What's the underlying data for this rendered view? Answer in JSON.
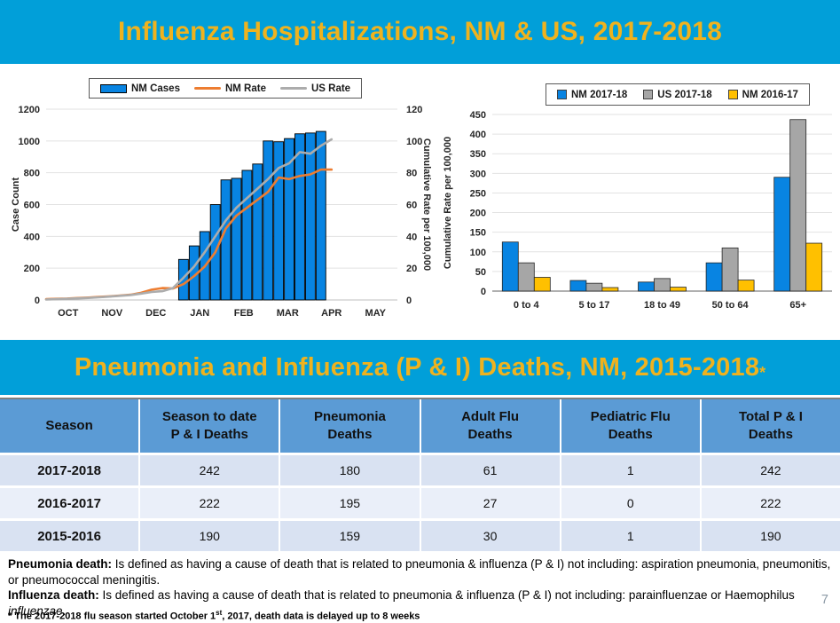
{
  "slide": {
    "title1": "Influenza Hospitalizations, NM & US, 2017-2018",
    "title2": "Pneumonia and Influenza (P & I) Deaths, NM, 2015-2018",
    "title2_asterisk": "*",
    "page_number": "7"
  },
  "colors": {
    "banner_blue": "#019FD9",
    "title_gold": "#EFB21E",
    "bar_blue": "#0884E2",
    "line_orange": "#ED7D31",
    "line_gray": "#ACACAC",
    "bar_gray": "#A6A6A6",
    "bar_gold": "#FFC000",
    "table_header_blue": "#5B9BD5",
    "row_dark": "#D9E2F2",
    "row_light": "#EAEFF9"
  },
  "chart_data": [
    {
      "id": "influenza-hospitalizations-weekly",
      "type": "bar+line",
      "xlabel": "",
      "ylabel_left": "Case Count",
      "ylabel_right": "Cumulative Rate per 100,000",
      "y_left": {
        "min": 0,
        "max": 1200,
        "step": 200
      },
      "y_right": {
        "min": 0,
        "max": 120,
        "step": 20
      },
      "x_months": [
        "OCT",
        "NOV",
        "DEC",
        "JAN",
        "FEB",
        "MAR",
        "APR",
        "MAY"
      ],
      "x_domain": [
        0,
        8
      ],
      "bars": {
        "name": "NM Cases",
        "color": "#0884E2",
        "x": [
          3.129,
          3.37,
          3.611,
          3.852,
          4.092,
          4.333,
          4.574,
          4.814,
          5.055,
          5.296,
          5.537,
          5.777,
          6.018,
          6.259
        ],
        "values": [
          255,
          340,
          430,
          600,
          755,
          765,
          815,
          855,
          1000,
          995,
          1015,
          1045,
          1050,
          1060
        ]
      },
      "lines": [
        {
          "name": "NM Rate",
          "color": "#ED7D31",
          "x": [
            0,
            0.241,
            0.481,
            0.722,
            0.963,
            1.204,
            1.444,
            1.685,
            1.926,
            2.166,
            2.407,
            2.648,
            2.889,
            3.129,
            3.37,
            3.611,
            3.852,
            4.092,
            4.333,
            4.574,
            4.814,
            5.055,
            5.296,
            5.537,
            5.777,
            6.018,
            6.259,
            6.5
          ],
          "values": [
            0.5,
            0.7,
            0.9,
            1.2,
            1.5,
            1.9,
            2.3,
            2.8,
            3.3,
            4.5,
            6.5,
            7.5,
            7.2,
            10,
            15,
            21,
            30,
            45,
            53,
            58,
            63,
            68,
            77,
            76,
            78,
            79,
            82,
            82
          ]
        },
        {
          "name": "US Rate",
          "color": "#ACACAC",
          "x": [
            0,
            0.241,
            0.481,
            0.722,
            0.963,
            1.204,
            1.444,
            1.685,
            1.926,
            2.166,
            2.407,
            2.648,
            2.889,
            3.129,
            3.37,
            3.611,
            3.852,
            4.092,
            4.333,
            4.574,
            4.814,
            5.055,
            5.296,
            5.537,
            5.777,
            6.018,
            6.259,
            6.5
          ],
          "values": [
            0.3,
            0.5,
            0.7,
            1.0,
            1.3,
            1.7,
            2.1,
            2.6,
            3.1,
            4,
            5,
            5.5,
            7.5,
            14,
            21,
            30,
            40,
            50,
            58,
            64,
            70,
            76,
            83,
            86,
            93,
            92,
            97,
            101
          ]
        }
      ]
    },
    {
      "id": "cumulative-rate-by-age",
      "type": "grouped-bar",
      "ylabel": "Cumulative Rate per 100,000",
      "y": {
        "min": 0,
        "max": 450,
        "step": 50
      },
      "categories": [
        "0 to 4",
        "5 to 17",
        "18 to 49",
        "50 to 64",
        "65+"
      ],
      "series": [
        {
          "name": "NM 2017-18",
          "color": "#0884E2",
          "values": [
            125,
            27,
            23,
            72,
            290
          ]
        },
        {
          "name": "US 2017-18",
          "color": "#A6A6A6",
          "values": [
            72,
            20,
            32,
            110,
            437
          ]
        },
        {
          "name": "NM 2016-17",
          "color": "#FFC000",
          "values": [
            35,
            9,
            10,
            28,
            122
          ]
        }
      ]
    }
  ],
  "table": {
    "headers": [
      "Season",
      "Season to date\nP & I Deaths",
      "Pneumonia\nDeaths",
      "Adult Flu\nDeaths",
      "Pediatric Flu\nDeaths",
      "Total P & I\nDeaths"
    ],
    "rows": [
      {
        "season": "2017-2018",
        "cells": [
          "242",
          "180",
          "61",
          "1",
          "242"
        ]
      },
      {
        "season": "2016-2017",
        "cells": [
          "222",
          "195",
          "27",
          "0",
          "222"
        ]
      },
      {
        "season": "2015-2016",
        "cells": [
          "190",
          "159",
          "30",
          "1",
          "190"
        ]
      }
    ]
  },
  "footnotes": {
    "pneumonia_label": "Pneumonia death:",
    "pneumonia_text": " Is defined as having a cause of death that is related to pneumonia & influenza (P & I) not including: aspiration pneumonia, pneumonitis,  or pneumococcal meningitis.",
    "influenza_label": "Influenza death:",
    "influenza_text": " Is defined as having a cause of death that is related to pneumonia & influenza (P & I) not including: parainfluenzae or Haemophilus ",
    "influenza_italic": "influenzae",
    "influenza_end": ".",
    "star_prefix": "* The 2017-2018 flu season started October 1",
    "star_sup": "st",
    "star_suffix": ", 2017, death data is delayed up to 8 weeks"
  }
}
